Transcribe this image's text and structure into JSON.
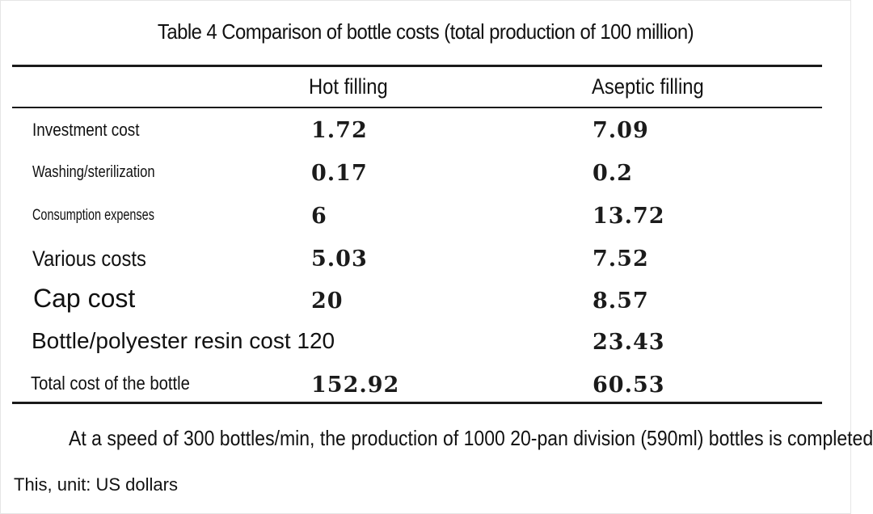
{
  "title": "Table 4 Comparison of bottle costs (total production of 100 million)",
  "headers": {
    "col1": "Hot filling",
    "col2": "Aseptic filling"
  },
  "rows": [
    {
      "label": "Investment cost",
      "hot": "1.72",
      "aseptic": "7.09"
    },
    {
      "label": "Washing/sterilization",
      "hot": "0.17",
      "aseptic": "0.2"
    },
    {
      "label": "Consumption expenses",
      "hot": "6",
      "aseptic": "13.72"
    },
    {
      "label": "Various costs",
      "hot": "5.03",
      "aseptic": "7.52"
    },
    {
      "label": "Cap cost",
      "hot": "20",
      "aseptic": "8.57"
    },
    {
      "label": "Bottle/polyester resin cost 120",
      "hot": "",
      "aseptic": "23.43"
    },
    {
      "label": "Total cost of the bottle",
      "hot": "152.92",
      "aseptic": "60.53"
    }
  ],
  "footnote": {
    "line1": "At a speed of 300 bottles/min, the production of 1000 20-pan division (590ml) bottles is completed",
    "line2": "This, unit: US dollars"
  }
}
